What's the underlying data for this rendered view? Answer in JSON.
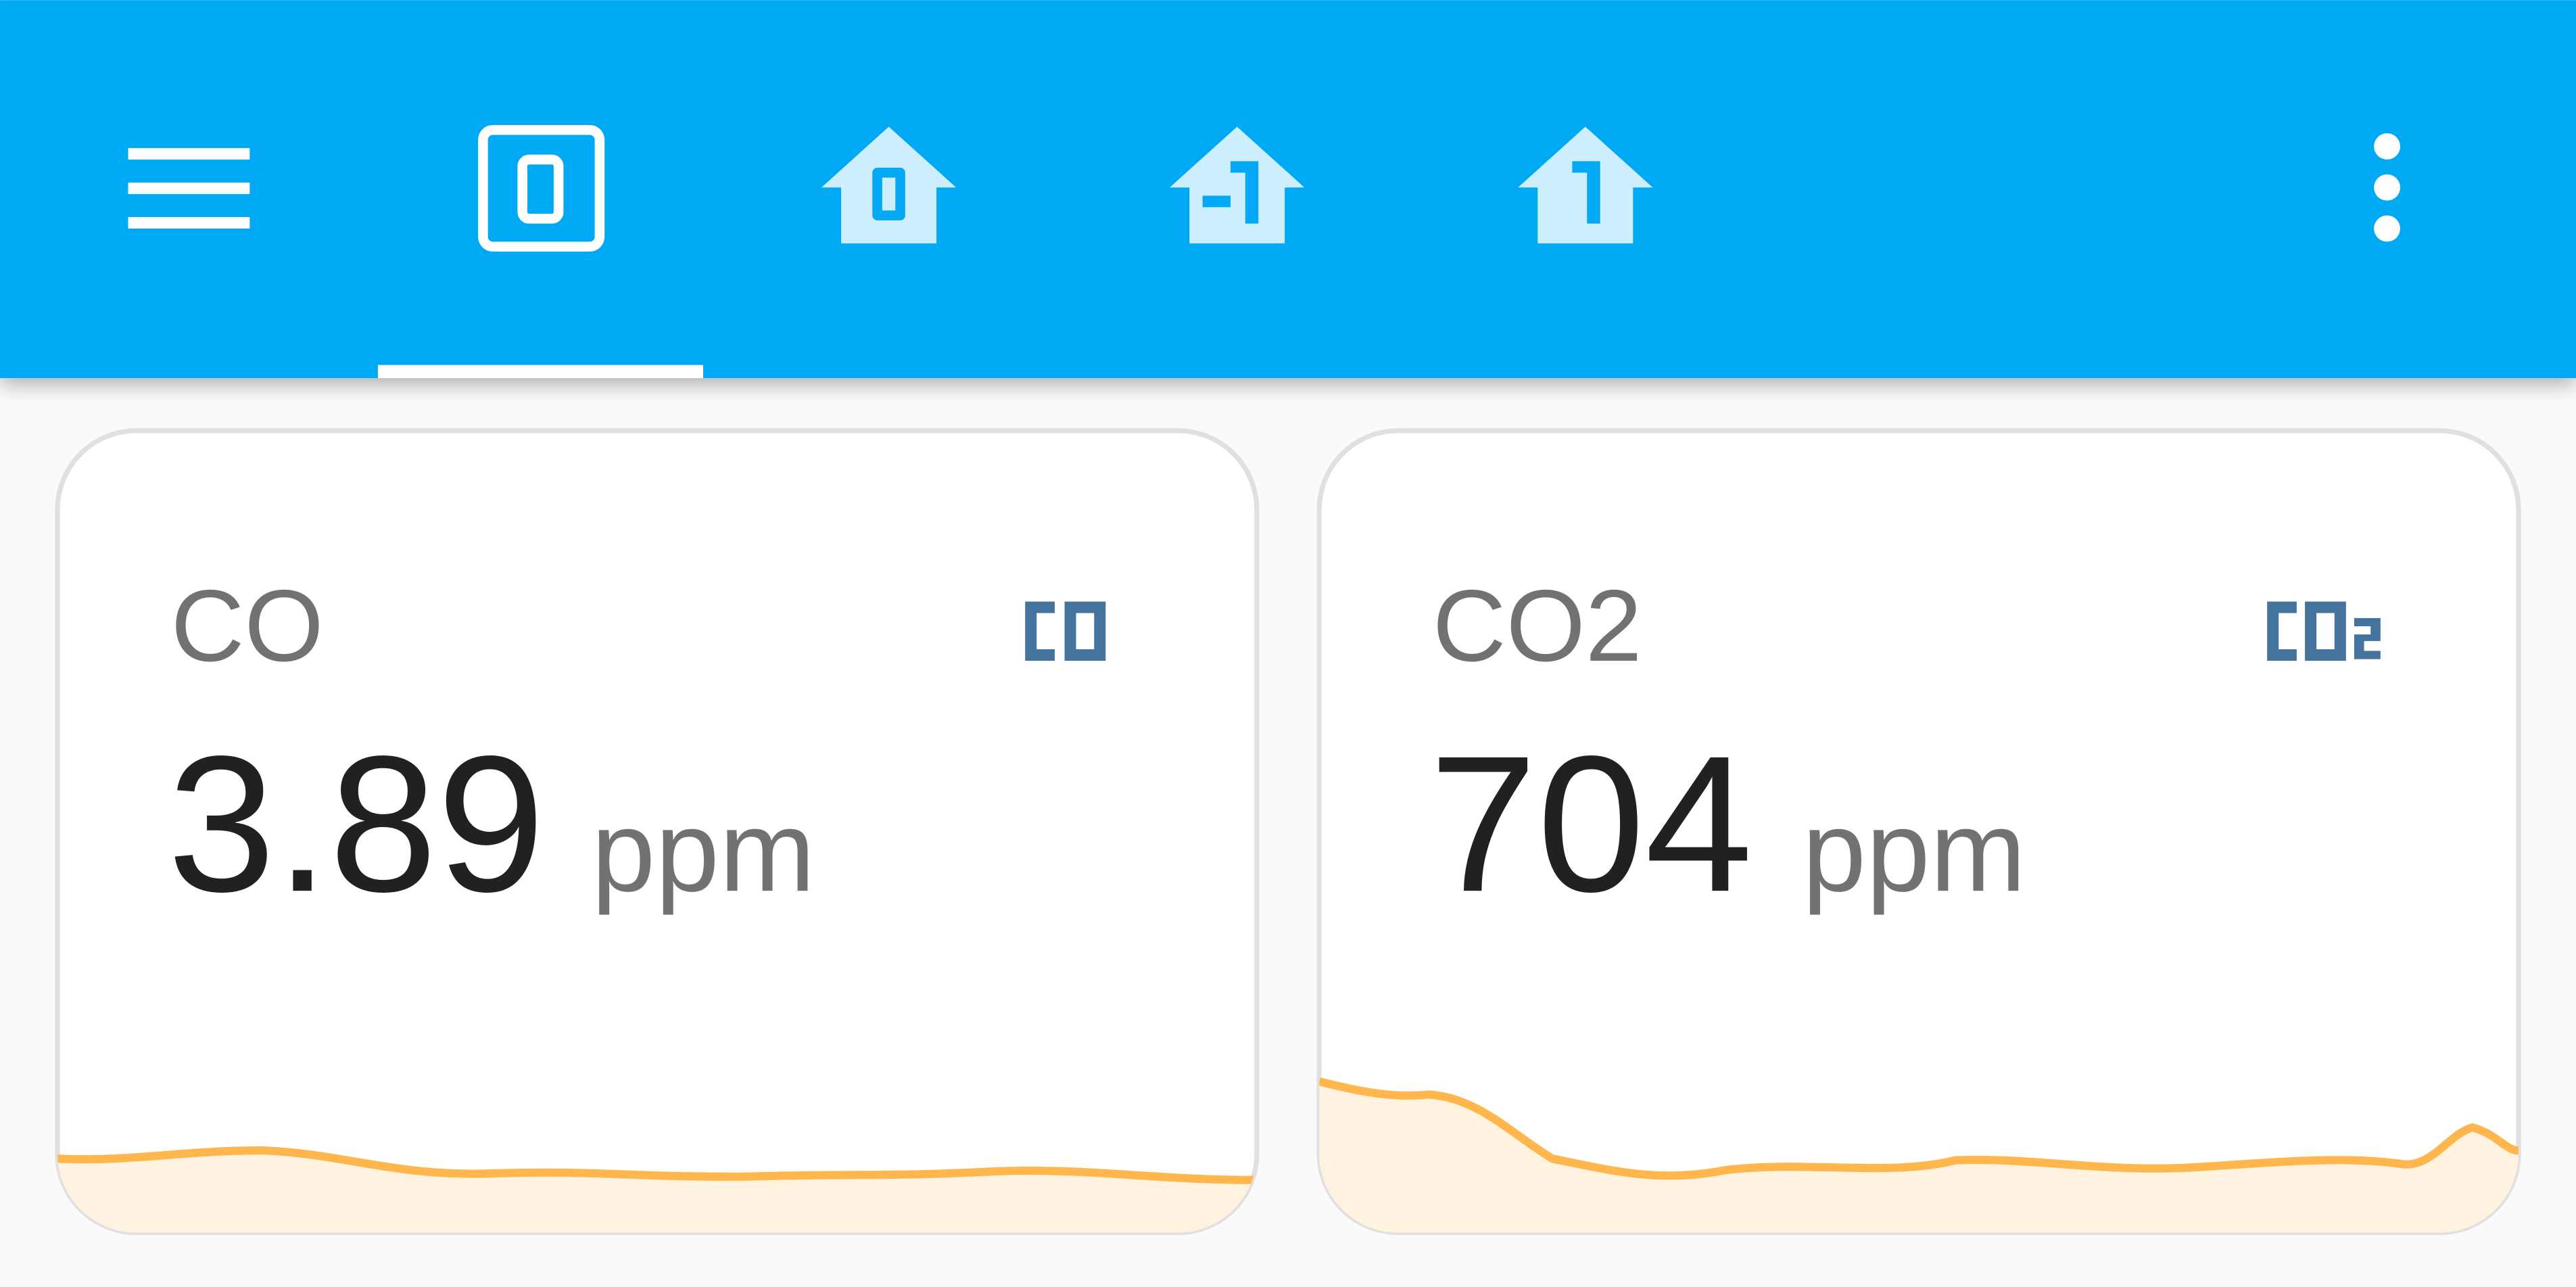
{
  "cards": [
    {
      "name": "CO",
      "value": 3.89,
      "unit": "ppm"
    },
    {
      "name": "CO2",
      "value": 704,
      "unit": "ppm"
    }
  ]
}
